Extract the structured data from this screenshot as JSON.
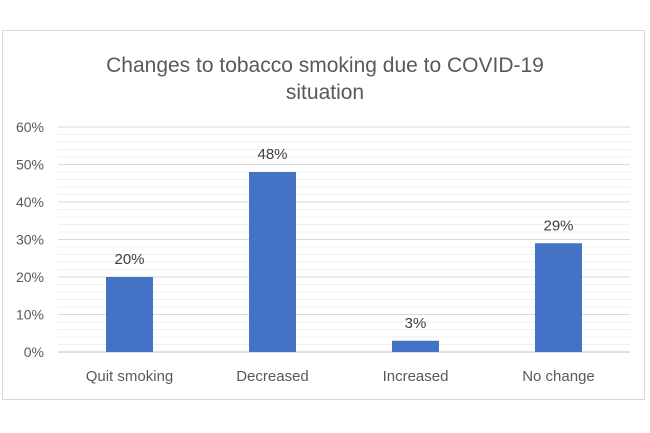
{
  "chart_data": {
    "type": "bar",
    "title": "Changes to tobacco smoking due to COVID-19\nsituation",
    "categories": [
      "Quit smoking",
      "Decreased",
      "Increased",
      "No change"
    ],
    "values": [
      20,
      48,
      3,
      29
    ],
    "data_labels": [
      "20%",
      "48%",
      "3%",
      "29%"
    ],
    "ylim": [
      0,
      60
    ],
    "yticks": [
      0,
      10,
      20,
      30,
      40,
      50,
      60
    ],
    "ytick_labels": [
      "0%",
      "10%",
      "20%",
      "30%",
      "40%",
      "50%",
      "60%"
    ],
    "xlabel": "",
    "ylabel": "",
    "grid": true,
    "legend": "none",
    "bar_color": "#4472c4",
    "grid_color": "#d9d9d9"
  }
}
